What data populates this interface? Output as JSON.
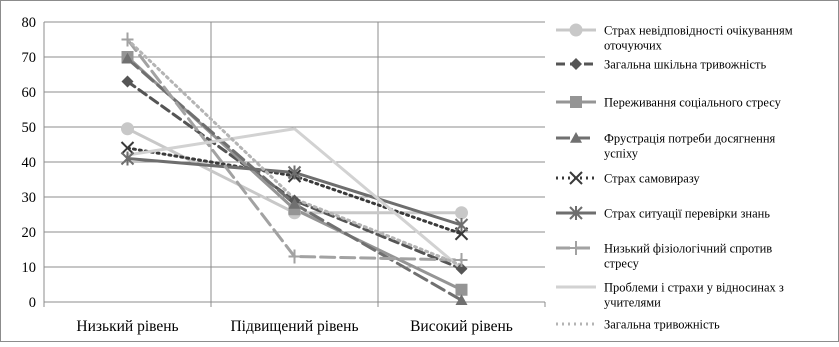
{
  "chart_data": {
    "type": "line",
    "title": "",
    "xlabel": "",
    "ylabel": "",
    "categories": [
      "Низький рівень",
      "Підвищений рівень",
      "Високий рівень"
    ],
    "ylim": [
      0,
      80
    ],
    "yticks": [
      0,
      10,
      20,
      30,
      40,
      50,
      60,
      70,
      80
    ],
    "grid": "horizontal major gridlines",
    "legend_position": "right",
    "series": [
      {
        "name": "Страх невідповідності очікуванням оточуючих",
        "values": [
          49.5,
          25.5,
          25.5
        ],
        "color": "#c8c8c8",
        "style": "solid",
        "marker": "circle"
      },
      {
        "name": "Загальна шкільна тривожність",
        "values": [
          63,
          29,
          9.5
        ],
        "color": "#555555",
        "style": "dash",
        "marker": "diamond"
      },
      {
        "name": "Переживання соціального стресу",
        "values": [
          70,
          26.5,
          3.5
        ],
        "color": "#959595",
        "style": "solid",
        "marker": "square"
      },
      {
        "name": "Фрустрація потреби досягнення успіху",
        "values": [
          69.5,
          28,
          0.5
        ],
        "color": "#707070",
        "style": "longdash",
        "marker": "triangle"
      },
      {
        "name": "Страх самовиразу",
        "values": [
          44,
          36,
          19.5
        ],
        "color": "#3a3a3a",
        "style": "dot",
        "marker": "x"
      },
      {
        "name": "Страх ситуації перевірки знань",
        "values": [
          41,
          37,
          22
        ],
        "color": "#6e6e6e",
        "style": "solid",
        "marker": "asterisk"
      },
      {
        "name": "Низький фізіологічний спротив стресу",
        "values": [
          75,
          13,
          12
        ],
        "color": "#a2a2a2",
        "style": "longdash",
        "marker": "plus"
      },
      {
        "name": "Проблеми і страхи у відносинах з учителями",
        "values": [
          42,
          49.5,
          9.5
        ],
        "color": "#d2d2d2",
        "style": "solid",
        "marker": "none"
      },
      {
        "name": "Загальна тривожність",
        "values": [
          75,
          29.5,
          10.5
        ],
        "color": "#b4b4b4",
        "style": "dot",
        "marker": "none"
      }
    ]
  },
  "legend": {
    "entries": [
      {
        "lines": [
          "Страх невідповідності очікуванням",
          "оточуючих"
        ]
      },
      {
        "lines": [
          "Загальна шкільна тривожність"
        ]
      },
      {
        "lines": [
          "Переживання соціального стресу"
        ]
      },
      {
        "lines": [
          "Фрустрація потреби досягнення",
          "успіху"
        ]
      },
      {
        "lines": [
          "Страх самовиразу"
        ]
      },
      {
        "lines": [
          "Страх ситуації перевірки знань"
        ]
      },
      {
        "lines": [
          "Низький фізіологічний спротив",
          "стресу"
        ]
      },
      {
        "lines": [
          "Проблеми і страхи у відносинах з",
          "учителями"
        ]
      },
      {
        "lines": [
          "Загальна тривожність"
        ]
      }
    ]
  }
}
